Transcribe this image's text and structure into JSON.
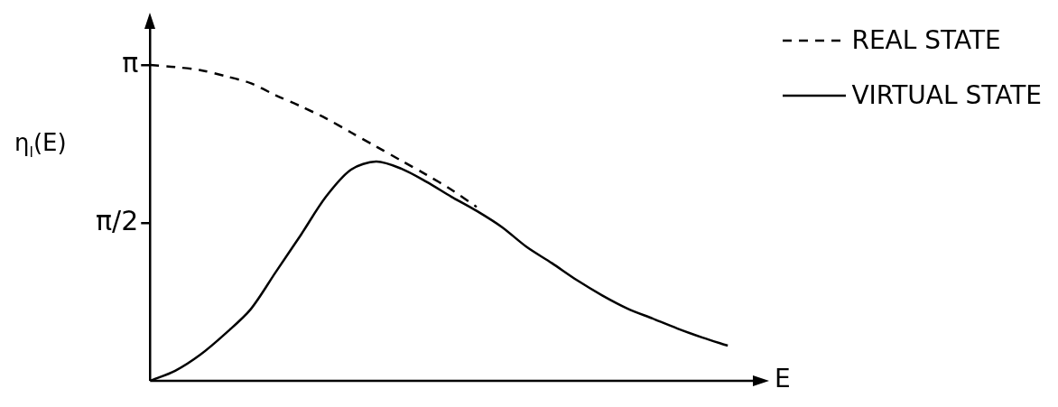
{
  "chart_data": {
    "type": "line",
    "xlabel": "E",
    "ylabel": "η$_{l}$(E)",
    "categories": [
      null,
      null,
      null,
      null,
      null,
      null,
      null,
      null,
      null,
      null,
      null,
      null,
      null,
      null,
      null,
      null,
      null,
      null,
      null,
      null,
      null,
      null,
      null,
      null,
      null
    ],
    "series": [
      {
        "name": "REAL STATE",
        "color": "#000000",
        "line_style": "dashed",
        "values": [
          3.14,
          3.12,
          3.09,
          3.03,
          2.96,
          2.84,
          2.73,
          2.61,
          2.47,
          2.33,
          2.19,
          2.05,
          1.9,
          1.73,
          null,
          null,
          null,
          null,
          null,
          null,
          null,
          null,
          null,
          null,
          null
        ]
      },
      {
        "name": "VIRTUAL STATE",
        "color": "#000000",
        "line_style": "solid",
        "values": [
          0,
          0.1,
          0.26,
          0.47,
          0.71,
          1.08,
          1.45,
          1.83,
          2.1,
          2.18,
          2.11,
          1.98,
          1.83,
          1.69,
          1.53,
          1.33,
          1.17,
          1.0,
          0.85,
          0.72,
          0.62,
          0.52,
          0.43,
          0.35,
          null
        ]
      }
    ],
    "ylim": [
      0,
      3.5
    ],
    "yticks": [
      {
        "value": 1.5708,
        "label": "π/2"
      },
      {
        "value": 3.1416,
        "label": "π"
      }
    ],
    "grid": false,
    "legend": "top right",
    "tick_labels": "y"
  }
}
